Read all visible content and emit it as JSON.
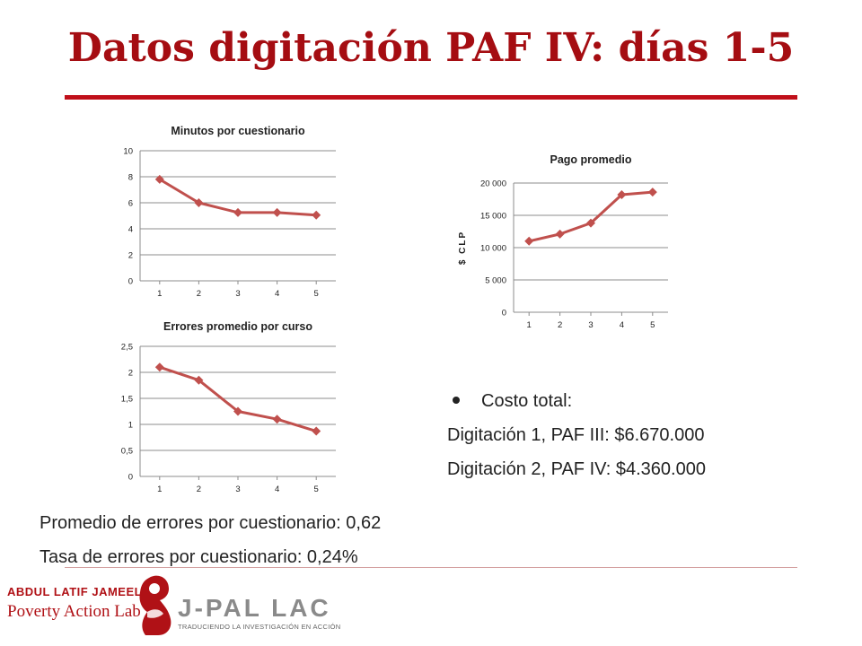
{
  "slide": {
    "title": "Datos digitación PAF IV: días 1-5",
    "bullet": "Costo total:",
    "cost_lines": [
      "Digitación 1, PAF III: $6.670.000",
      "Digitación 2, PAF IV: $4.360.000"
    ],
    "bottom_lines": [
      "Promedio de errores por cuestionario: 0,62",
      "Tasa de errores por cuestionario: 0,24%"
    ],
    "logo": {
      "org_line1": "ABDUL LATIF JAMEEL",
      "org_line2": "Poverty Action Lab",
      "brand": "J-PAL LAC",
      "tagline": "TRADUCIENDO LA INVESTIGACIÓN EN ACCIÓN"
    }
  },
  "colors": {
    "accent": "#a50d12",
    "series": "#c0504d",
    "grid": "#8c8c8c"
  },
  "chart_data": [
    {
      "type": "line",
      "title": "Minutos por cuestionario",
      "x": [
        "1",
        "2",
        "3",
        "4",
        "5"
      ],
      "values": [
        7.8,
        6.0,
        5.25,
        5.25,
        5.05
      ],
      "ylim": [
        0,
        10
      ],
      "yticks": [
        "0",
        "2",
        "4",
        "6",
        "8",
        "10"
      ],
      "ylabel": "",
      "grid": true
    },
    {
      "type": "line",
      "title": "Errores promedio por curso",
      "x": [
        "1",
        "2",
        "3",
        "4",
        "5"
      ],
      "values": [
        2.1,
        1.85,
        1.25,
        1.1,
        0.87
      ],
      "ylim": [
        0,
        2.5
      ],
      "yticks": [
        "0",
        "0,5",
        "1",
        "1,5",
        "2",
        "2,5"
      ],
      "ylabel": "",
      "grid": true
    },
    {
      "type": "line",
      "title": "Pago promedio",
      "x": [
        "1",
        "2",
        "3",
        "4",
        "5"
      ],
      "values": [
        11000,
        12100,
        13800,
        18200,
        18600
      ],
      "ylim": [
        0,
        20000
      ],
      "yticks": [
        "0",
        "5 000",
        "10 000",
        "15 000",
        "20 000"
      ],
      "ylabel": "$ CLP",
      "grid": true
    }
  ]
}
